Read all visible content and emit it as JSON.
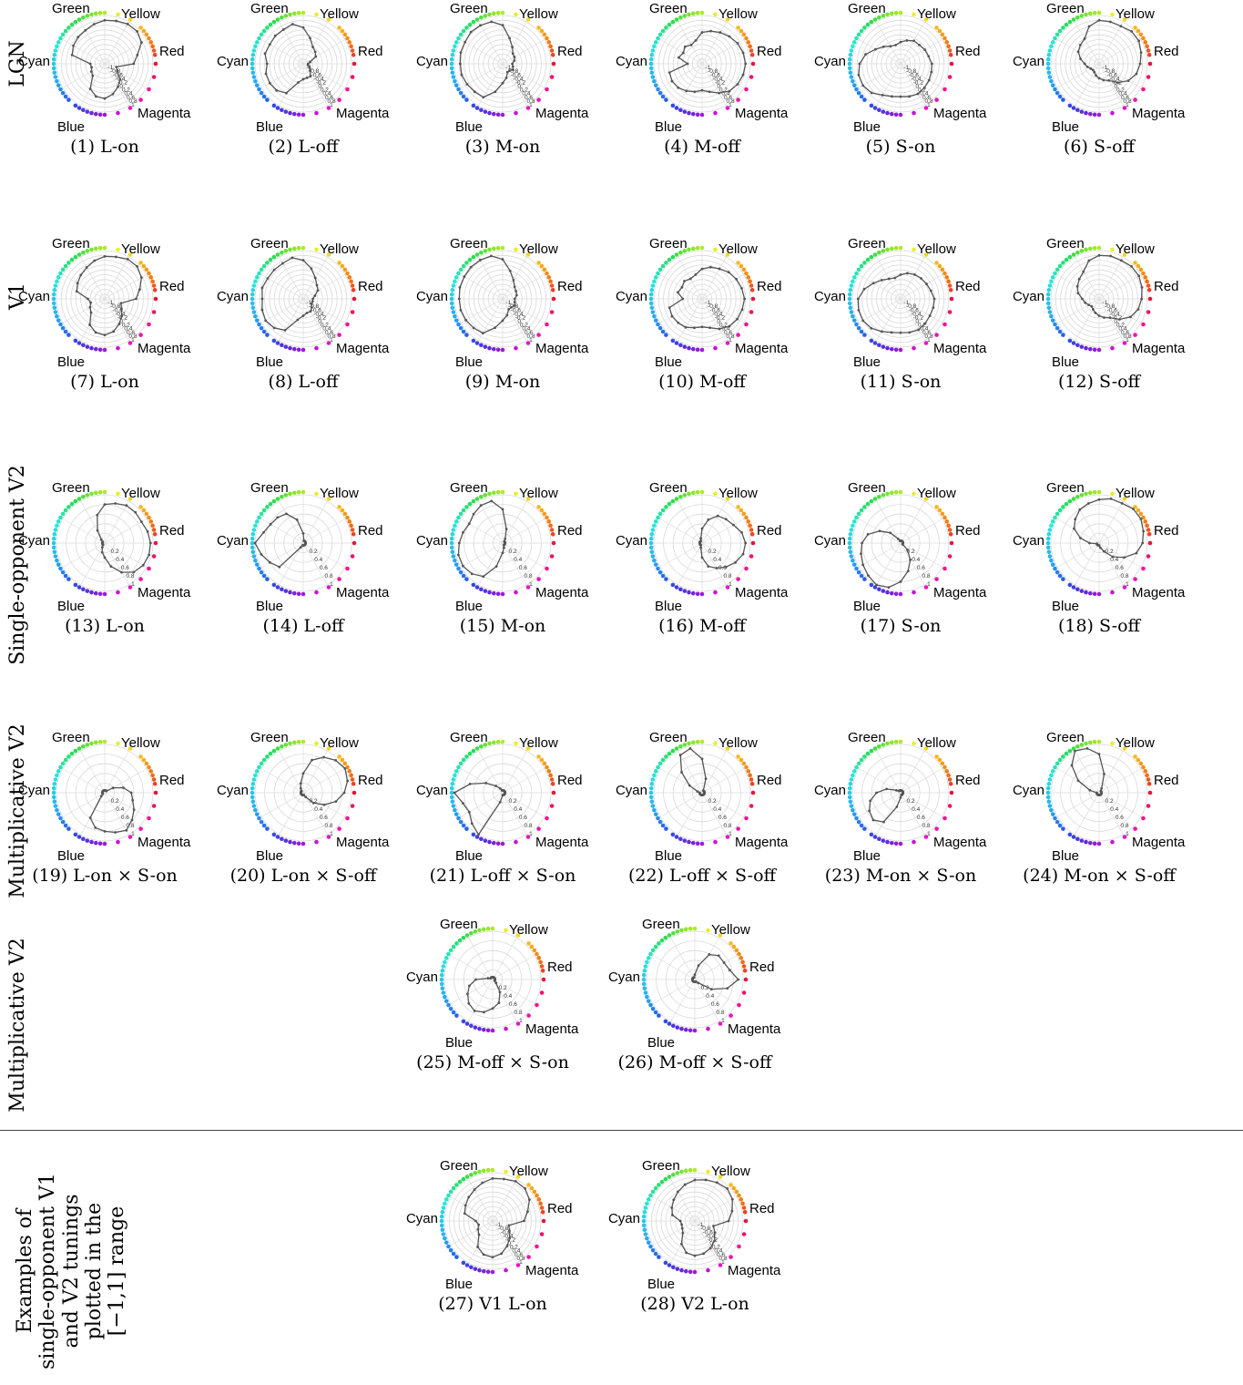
{
  "row_labels": [
    {
      "lines": [
        "LGN"
      ]
    },
    {
      "lines": [
        "V1"
      ]
    },
    {
      "lines": [
        "Single-opponent V2"
      ]
    },
    {
      "lines": [
        "Multiplicative V2"
      ]
    },
    {
      "lines": [
        "Multiplicative V2"
      ]
    },
    {
      "lines": [
        "Examples of",
        "single-opponent V1",
        "and V2 tunings",
        "plotted in the",
        "[−1,1] range"
      ]
    }
  ],
  "hue_labels": {
    "green": "Green",
    "yellow": "Yellow",
    "red": "Red",
    "cyan": "Cyan",
    "blue": "Blue",
    "magenta": "Magenta"
  },
  "radial_ticks": [
    "0.2",
    "0.4",
    "0.6",
    "0.8",
    "1"
  ],
  "dense_ticks": [
    "-1",
    "-0.8",
    "-0.6",
    "-0.4",
    "-0.2",
    "0",
    "0.2",
    "0.4",
    "0.6",
    "0.8",
    "1"
  ],
  "chart_data": [
    {
      "type": "polar",
      "caption": "(1) L-on",
      "rmax": 1,
      "rings": 10,
      "values": [
        0.6,
        0.7,
        0.88,
        0.95,
        0.95,
        0.92,
        0.9,
        0.85,
        0.8,
        0.78,
        0.75,
        0.7,
        0.3,
        0.28,
        0.32,
        0.35,
        0.6,
        0.7,
        0.72,
        0.65,
        0.55,
        0.45,
        0.3,
        0.25
      ]
    },
    {
      "type": "polar",
      "caption": "(2) L-off",
      "rmax": 1,
      "rings": 10,
      "values": [
        0.1,
        0.15,
        0.3,
        0.35,
        0.4,
        0.55,
        0.75,
        0.85,
        0.82,
        0.82,
        0.8,
        0.82,
        0.75,
        0.8,
        0.8,
        0.78,
        0.7,
        0.4,
        0.32,
        0.3,
        0.3,
        0.2,
        0.15,
        0.1
      ]
    },
    {
      "type": "polar",
      "caption": "(3) M-on",
      "rmax": 1,
      "rings": 10,
      "values": [
        0.2,
        0.25,
        0.28,
        0.3,
        0.4,
        0.55,
        0.8,
        0.9,
        0.92,
        0.93,
        0.9,
        0.9,
        0.88,
        0.88,
        0.85,
        0.82,
        0.8,
        0.6,
        0.4,
        0.3,
        0.2,
        0.2,
        0.25,
        0.22
      ]
    },
    {
      "type": "polar",
      "caption": "(4) M-off",
      "rmax": 1,
      "rings": 10,
      "values": [
        0.9,
        0.88,
        0.85,
        0.8,
        0.75,
        0.7,
        0.65,
        0.5,
        0.45,
        0.5,
        0.45,
        0.5,
        0.3,
        0.7,
        0.72,
        0.7,
        0.65,
        0.6,
        0.55,
        0.6,
        0.7,
        0.8,
        0.85,
        0.88
      ]
    },
    {
      "type": "polar",
      "caption": "(5) S-on",
      "rmax": 1,
      "rings": 10,
      "values": [
        0.65,
        0.6,
        0.58,
        0.55,
        0.55,
        0.5,
        0.45,
        0.4,
        0.42,
        0.5,
        0.6,
        0.75,
        0.85,
        0.9,
        0.9,
        0.85,
        0.75,
        0.7,
        0.68,
        0.7,
        0.72,
        0.7,
        0.68,
        0.66
      ]
    },
    {
      "type": "polar",
      "caption": "(6) S-off",
      "rmax": 1,
      "rings": 10,
      "values": [
        0.85,
        0.9,
        0.95,
        0.95,
        0.9,
        0.9,
        0.9,
        0.8,
        0.6,
        0.55,
        0.5,
        0.4,
        0.3,
        0.25,
        0.2,
        0.18,
        0.2,
        0.25,
        0.3,
        0.35,
        0.4,
        0.55,
        0.7,
        0.8
      ]
    },
    {
      "type": "polar",
      "caption": "(7) L-on",
      "rmax": 1,
      "rings": 10,
      "values": [
        0.65,
        0.75,
        0.88,
        0.95,
        0.95,
        0.9,
        0.88,
        0.82,
        0.75,
        0.7,
        0.65,
        0.6,
        0.35,
        0.3,
        0.35,
        0.4,
        0.62,
        0.72,
        0.75,
        0.7,
        0.6,
        0.5,
        0.4,
        0.35
      ]
    },
    {
      "type": "polar",
      "caption": "(8) L-off",
      "rmax": 1,
      "rings": 10,
      "values": [
        0.2,
        0.25,
        0.35,
        0.4,
        0.5,
        0.65,
        0.8,
        0.88,
        0.85,
        0.85,
        0.85,
        0.88,
        0.85,
        0.88,
        0.9,
        0.85,
        0.75,
        0.45,
        0.35,
        0.3,
        0.3,
        0.25,
        0.2,
        0.2
      ]
    },
    {
      "type": "polar",
      "caption": "(9) M-on",
      "rmax": 1,
      "rings": 10,
      "values": [
        0.25,
        0.3,
        0.32,
        0.35,
        0.45,
        0.6,
        0.82,
        0.92,
        0.93,
        0.93,
        0.92,
        0.92,
        0.9,
        0.9,
        0.88,
        0.85,
        0.82,
        0.62,
        0.45,
        0.35,
        0.25,
        0.25,
        0.28,
        0.26
      ]
    },
    {
      "type": "polar",
      "caption": "(10) M-off",
      "rmax": 1,
      "rings": 10,
      "values": [
        0.88,
        0.85,
        0.82,
        0.78,
        0.72,
        0.68,
        0.62,
        0.52,
        0.48,
        0.52,
        0.48,
        0.52,
        0.4,
        0.7,
        0.72,
        0.7,
        0.68,
        0.62,
        0.58,
        0.62,
        0.72,
        0.8,
        0.84,
        0.86
      ]
    },
    {
      "type": "polar",
      "caption": "(11) S-on",
      "rmax": 1,
      "rings": 10,
      "values": [
        0.7,
        0.65,
        0.62,
        0.6,
        0.58,
        0.55,
        0.5,
        0.45,
        0.48,
        0.55,
        0.65,
        0.78,
        0.88,
        0.9,
        0.9,
        0.86,
        0.78,
        0.72,
        0.7,
        0.72,
        0.74,
        0.72,
        0.7,
        0.7
      ]
    },
    {
      "type": "polar",
      "caption": "(12) S-off",
      "rmax": 1,
      "rings": 10,
      "values": [
        0.88,
        0.92,
        0.95,
        0.95,
        0.92,
        0.92,
        0.9,
        0.82,
        0.65,
        0.58,
        0.52,
        0.45,
        0.35,
        0.3,
        0.25,
        0.22,
        0.25,
        0.3,
        0.35,
        0.4,
        0.45,
        0.6,
        0.75,
        0.84
      ]
    },
    {
      "type": "polar",
      "caption": "(13) L-on",
      "rmax": 1,
      "rings": 5,
      "values": [
        0.95,
        0.92,
        0.88,
        0.9,
        0.9,
        0.85,
        0.8,
        0.6,
        0.3,
        0.1,
        0.05,
        0.05,
        0.05,
        0.05,
        0.05,
        0.05,
        0.1,
        0.2,
        0.3,
        0.5,
        0.7,
        0.85,
        0.92,
        0.95
      ]
    },
    {
      "type": "polar",
      "caption": "(14) L-off",
      "rmax": 1,
      "rings": 5,
      "values": [
        0.05,
        0.05,
        0.05,
        0.05,
        0.05,
        0.05,
        0.2,
        0.5,
        0.7,
        0.75,
        0.78,
        0.85,
        1.0,
        0.9,
        0.8,
        0.7,
        0.1,
        0.05,
        0.05,
        0.05,
        0.05,
        0.05,
        0.05,
        0.05
      ]
    },
    {
      "type": "polar",
      "caption": "(15) M-on",
      "rmax": 1,
      "rings": 5,
      "values": [
        0.05,
        0.05,
        0.05,
        0.05,
        0.1,
        0.3,
        0.7,
        0.9,
        0.9,
        0.85,
        0.8,
        0.85,
        0.9,
        0.95,
        0.95,
        0.9,
        0.8,
        0.5,
        0.2,
        0.1,
        0.05,
        0.05,
        0.05,
        0.05
      ]
    },
    {
      "type": "polar",
      "caption": "(16) M-off",
      "rmax": 1,
      "rings": 5,
      "values": [
        0.9,
        0.85,
        0.75,
        0.7,
        0.65,
        0.5,
        0.3,
        0.1,
        0.05,
        0.05,
        0.05,
        0.05,
        0.05,
        0.05,
        0.05,
        0.05,
        0.05,
        0.1,
        0.3,
        0.5,
        0.6,
        0.7,
        0.8,
        0.88
      ]
    },
    {
      "type": "polar",
      "caption": "(17) S-on",
      "rmax": 1,
      "rings": 5,
      "values": [
        0.05,
        0.05,
        0.05,
        0.05,
        0.05,
        0.05,
        0.05,
        0.05,
        0.1,
        0.3,
        0.5,
        0.7,
        0.8,
        0.85,
        0.9,
        0.95,
        1.0,
        0.95,
        0.8,
        0.6,
        0.4,
        0.2,
        0.05,
        0.05
      ]
    },
    {
      "type": "polar",
      "caption": "(18) S-off",
      "rmax": 1,
      "rings": 5,
      "values": [
        0.9,
        0.95,
        1.0,
        1.0,
        0.95,
        0.95,
        0.9,
        0.85,
        0.8,
        0.7,
        0.6,
        0.4,
        0.2,
        0.05,
        0.05,
        0.05,
        0.05,
        0.05,
        0.05,
        0.1,
        0.2,
        0.4,
        0.6,
        0.8
      ]
    },
    {
      "type": "polar",
      "caption": "(19) L-on × S-on",
      "rmax": 1,
      "rings": 5,
      "values": [
        0.55,
        0.4,
        0.2,
        0.05,
        0.05,
        0.05,
        0.05,
        0.05,
        0.05,
        0.05,
        0.05,
        0.05,
        0.05,
        0.05,
        0.05,
        0.1,
        0.6,
        0.75,
        0.8,
        0.85,
        0.9,
        0.8,
        0.7,
        0.6
      ]
    },
    {
      "type": "polar",
      "caption": "(20) L-on × S-off",
      "rmax": 1,
      "rings": 5,
      "values": [
        0.85,
        0.95,
        1.0,
        0.95,
        0.85,
        0.7,
        0.4,
        0.2,
        0.1,
        0.05,
        0.05,
        0.05,
        0.05,
        0.05,
        0.05,
        0.05,
        0.05,
        0.05,
        0.05,
        0.05,
        0.1,
        0.3,
        0.5,
        0.7
      ]
    },
    {
      "type": "polar",
      "caption": "(21) L-off × S-on",
      "rmax": 1,
      "rings": 5,
      "values": [
        0.05,
        0.05,
        0.05,
        0.05,
        0.05,
        0.05,
        0.05,
        0.05,
        0.1,
        0.2,
        0.4,
        0.7,
        1.0,
        0.85,
        0.8,
        0.9,
        1.0,
        0.2,
        0.05,
        0.05,
        0.05,
        0.05,
        0.05,
        0.05
      ]
    },
    {
      "type": "polar",
      "caption": "(22) L-off × S-off",
      "rmax": 1,
      "rings": 5,
      "values": [
        0.05,
        0.05,
        0.05,
        0.05,
        0.05,
        0.3,
        0.7,
        0.95,
        0.9,
        0.6,
        0.3,
        0.1,
        0.05,
        0.05,
        0.05,
        0.05,
        0.05,
        0.05,
        0.05,
        0.05,
        0.05,
        0.05,
        0.05,
        0.05
      ]
    },
    {
      "type": "polar",
      "caption": "(23) M-on × S-on",
      "rmax": 1,
      "rings": 5,
      "values": [
        0.05,
        0.05,
        0.05,
        0.05,
        0.05,
        0.05,
        0.05,
        0.05,
        0.05,
        0.05,
        0.1,
        0.3,
        0.5,
        0.65,
        0.75,
        0.8,
        0.7,
        0.3,
        0.1,
        0.05,
        0.05,
        0.05,
        0.05,
        0.05
      ]
    },
    {
      "type": "polar",
      "caption": "(24) M-on × S-off",
      "rmax": 1,
      "rings": 5,
      "values": [
        0.05,
        0.05,
        0.05,
        0.05,
        0.1,
        0.4,
        0.8,
        0.95,
        1.0,
        0.8,
        0.5,
        0.2,
        0.05,
        0.05,
        0.05,
        0.05,
        0.05,
        0.05,
        0.05,
        0.05,
        0.05,
        0.05,
        0.05,
        0.05
      ]
    },
    {
      "type": "polar",
      "caption": "(25) M-off × S-on",
      "rmax": 1,
      "rings": 5,
      "values": [
        0.05,
        0.05,
        0.05,
        0.05,
        0.05,
        0.05,
        0.05,
        0.05,
        0.05,
        0.05,
        0.05,
        0.1,
        0.35,
        0.5,
        0.6,
        0.7,
        0.75,
        0.7,
        0.6,
        0.5,
        0.3,
        0.1,
        0.05,
        0.05
      ]
    },
    {
      "type": "polar",
      "caption": "(26) M-off × S-off",
      "rmax": 1,
      "rings": 5,
      "values": [
        0.9,
        0.75,
        0.7,
        0.7,
        0.6,
        0.3,
        0.1,
        0.05,
        0.05,
        0.05,
        0.05,
        0.05,
        0.05,
        0.05,
        0.05,
        0.05,
        0.05,
        0.05,
        0.05,
        0.05,
        0.05,
        0.1,
        0.4,
        0.7
      ]
    },
    {
      "type": "polar",
      "caption": "(27) V1 L-on",
      "rmax": 1,
      "rings": 10,
      "values": [
        0.65,
        0.75,
        0.88,
        0.95,
        0.95,
        0.9,
        0.88,
        0.82,
        0.75,
        0.7,
        0.65,
        0.6,
        0.35,
        0.3,
        0.35,
        0.4,
        0.62,
        0.72,
        0.75,
        0.7,
        0.6,
        0.5,
        0.4,
        0.35
      ]
    },
    {
      "type": "polar",
      "caption": "(28) V2 L-on",
      "rmax": 1,
      "rings": 10,
      "values": [
        0.7,
        0.8,
        0.9,
        0.95,
        0.92,
        0.88,
        0.85,
        0.78,
        0.7,
        0.62,
        0.55,
        0.48,
        0.3,
        0.28,
        0.3,
        0.35,
        0.55,
        0.68,
        0.72,
        0.7,
        0.65,
        0.58,
        0.48,
        0.4
      ]
    }
  ]
}
